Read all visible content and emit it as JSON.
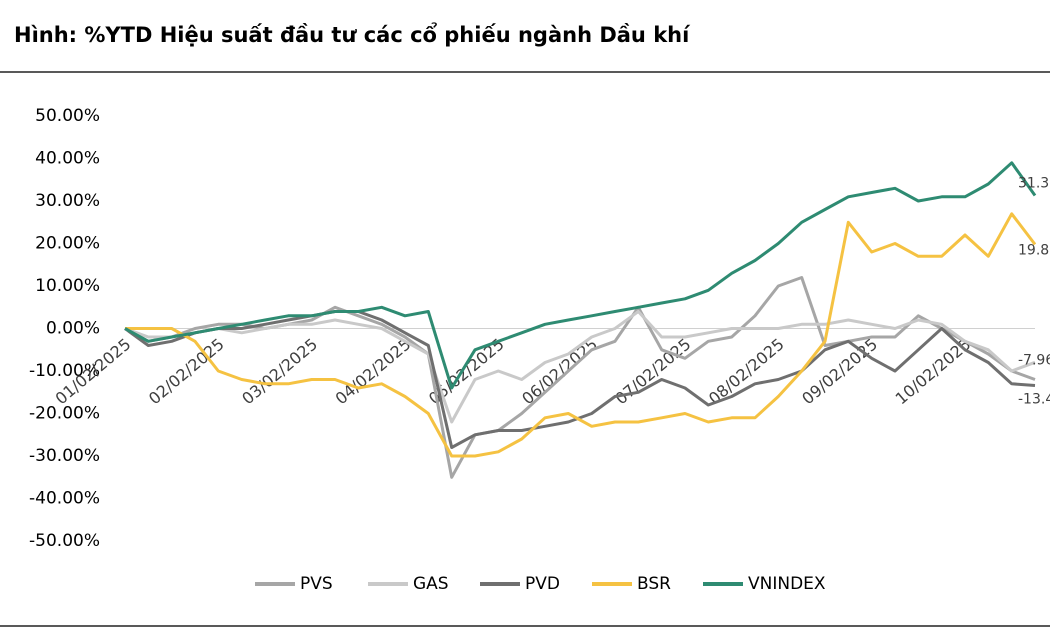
{
  "chart_data": {
    "type": "line",
    "title": "Hình: %YTD Hiệu suất đầu tư các cổ phiếu ngành Dầu khí",
    "categories": [
      "01/02/2025",
      null,
      null,
      null,
      "02/02/2025",
      null,
      null,
      null,
      "03/02/2025",
      null,
      null,
      null,
      "04/02/2025",
      null,
      null,
      null,
      "05/02/2025",
      null,
      null,
      null,
      "06/02/2025",
      null,
      null,
      null,
      "07/02/2025",
      null,
      null,
      null,
      "08/02/2025",
      null,
      null,
      null,
      "09/02/2025",
      null,
      null,
      null,
      "10/02/2025",
      null,
      null,
      null
    ],
    "series": [
      {
        "name": "PVS",
        "color": "#a6a6a6",
        "values": [
          0,
          -3,
          -2,
          0,
          1,
          1,
          0,
          1,
          2,
          5,
          3,
          1,
          -2,
          -6,
          -35,
          -25,
          -24,
          -20,
          -15,
          -10,
          -5,
          -3,
          5,
          -5,
          -7,
          -3,
          -2,
          3,
          10,
          12,
          -4,
          -3,
          -2,
          -2,
          3,
          0,
          -3,
          -6,
          -10,
          -12
        ]
      },
      {
        "name": "GAS",
        "color": "#c9c9c9",
        "values": [
          0,
          -2,
          -2,
          -1,
          0,
          -1,
          0,
          1,
          1,
          2,
          1,
          0,
          -3,
          -6,
          -22,
          -12,
          -10,
          -12,
          -8,
          -6,
          -2,
          0,
          4,
          -2,
          -2,
          -1,
          0,
          0,
          0,
          1,
          1,
          2,
          1,
          0,
          2,
          1,
          -3,
          -5,
          -10,
          -7.96
        ],
        "value_labels": [
          null,
          null,
          null,
          null,
          null,
          null,
          null,
          null,
          null,
          null,
          null,
          null,
          null,
          null,
          null,
          null,
          null,
          null,
          null,
          null,
          null,
          null,
          null,
          null,
          null,
          null,
          null,
          null,
          null,
          null,
          null,
          null,
          null,
          null,
          null,
          null,
          null,
          null,
          null,
          "-7.96"
        ]
      },
      {
        "name": "PVD",
        "color": "#6f6f6f",
        "values": [
          0,
          -4,
          -3,
          -1,
          0,
          0,
          1,
          2,
          3,
          4,
          4,
          2,
          -1,
          -4,
          -28,
          -25,
          -24,
          -24,
          -23,
          -22,
          -20,
          -16,
          -15,
          -12,
          -14,
          -18,
          -16,
          -13,
          -12,
          -10,
          -5,
          -3,
          -7,
          -10,
          -5,
          0,
          -5,
          -8,
          -13,
          -13.4
        ],
        "value_labels": [
          null,
          null,
          null,
          null,
          null,
          null,
          null,
          null,
          null,
          null,
          null,
          null,
          null,
          null,
          null,
          null,
          null,
          null,
          null,
          null,
          null,
          null,
          null,
          null,
          null,
          null,
          null,
          null,
          null,
          null,
          null,
          null,
          null,
          null,
          null,
          null,
          null,
          null,
          null,
          "-13.4"
        ]
      },
      {
        "name": "BSR",
        "color": "#f5c242",
        "values": [
          0,
          0,
          0,
          -3,
          -10,
          -12,
          -13,
          -13,
          -12,
          -12,
          -14,
          -13,
          -16,
          -20,
          -30,
          -30,
          -29,
          -26,
          -21,
          -20,
          -23,
          -22,
          -22,
          -21,
          -20,
          -22,
          -21,
          -21,
          -16,
          -10,
          -3,
          25,
          18,
          20,
          17,
          17,
          22,
          17,
          27,
          19.8
        ],
        "value_labels": [
          null,
          null,
          null,
          null,
          null,
          null,
          null,
          null,
          null,
          null,
          null,
          null,
          null,
          null,
          null,
          null,
          null,
          null,
          null,
          null,
          null,
          null,
          null,
          null,
          null,
          null,
          null,
          null,
          null,
          null,
          null,
          null,
          null,
          null,
          null,
          null,
          null,
          null,
          null,
          "19.8"
        ]
      },
      {
        "name": "VNINDEX",
        "color": "#2e8b72",
        "values": [
          0,
          -3,
          -2,
          -1,
          0,
          1,
          2,
          3,
          3,
          4,
          4,
          5,
          3,
          4,
          -14,
          -5,
          -3,
          -1,
          1,
          2,
          3,
          4,
          5,
          6,
          7,
          9,
          13,
          16,
          20,
          25,
          28,
          31,
          32,
          33,
          30,
          31,
          31,
          34,
          39,
          31.3
        ],
        "value_labels": [
          null,
          null,
          null,
          null,
          null,
          null,
          null,
          null,
          null,
          null,
          null,
          null,
          null,
          null,
          null,
          null,
          null,
          null,
          null,
          null,
          null,
          null,
          null,
          null,
          null,
          null,
          null,
          null,
          null,
          null,
          null,
          null,
          null,
          null,
          null,
          null,
          null,
          null,
          null,
          "31.3"
        ]
      }
    ],
    "ylim": [
      -50,
      50
    ],
    "yticks": [
      {
        "value": -50,
        "label": "-50.00%"
      },
      {
        "value": -40,
        "label": "-40.00%"
      },
      {
        "value": -30,
        "label": "-30.00%"
      },
      {
        "value": -20,
        "label": "-20.00%"
      },
      {
        "value": -10,
        "label": "-10.00%"
      },
      {
        "value": 0,
        "label": "0.00%"
      },
      {
        "value": 10,
        "label": "10.00%"
      },
      {
        "value": 20,
        "label": "20.00%"
      },
      {
        "value": 30,
        "label": "30.00%"
      },
      {
        "value": 40,
        "label": "40.00%"
      },
      {
        "value": 50,
        "label": "50.00%"
      }
    ],
    "legend": "bottom"
  }
}
